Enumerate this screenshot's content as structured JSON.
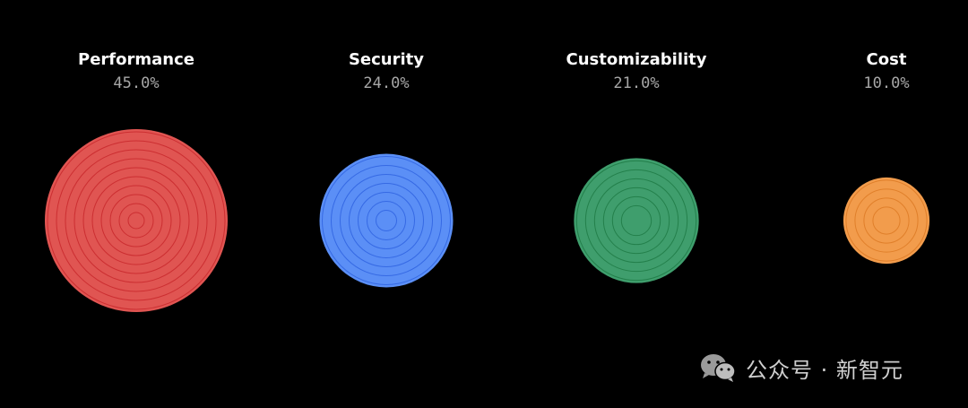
{
  "chart_data": {
    "type": "bubble",
    "categories": [
      "Performance",
      "Security",
      "Customizability",
      "Cost"
    ],
    "values": [
      45.0,
      24.0,
      21.0,
      10.0
    ],
    "value_labels": [
      "45.0%",
      "24.0%",
      "21.0%",
      "10.0%"
    ],
    "colors": [
      "#e05552",
      "#5b8ff6",
      "#3f9e6d",
      "#f29c4c"
    ],
    "ring_colors": [
      "#c8282c",
      "#2f63e0",
      "#1f7a45",
      "#dd7a25"
    ],
    "legend": "none",
    "grid": false
  },
  "watermark": {
    "icon": "wechat-icon",
    "text": "公众号 · 新智元"
  }
}
